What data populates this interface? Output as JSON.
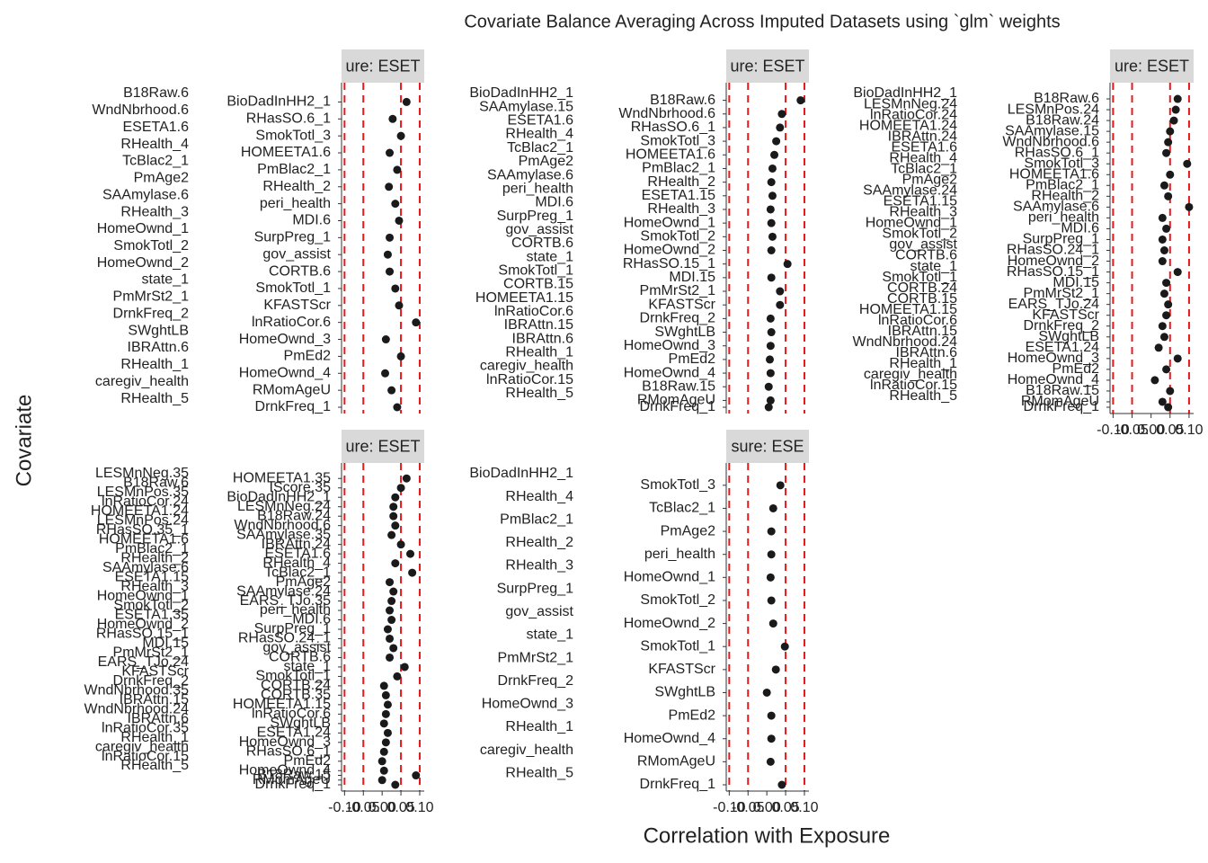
{
  "chart_data": {
    "type": "dot",
    "title": "Covariate Balance Averaging Across Imputed Datasets using `glm` weights",
    "x_label": "Correlation with Exposure",
    "y_label": "Covariate",
    "xlim": [
      -0.108,
      0.112
    ],
    "xticks": [
      {
        "value": -0.1,
        "label": "-0.10"
      },
      {
        "value": -0.05,
        "label": "-0.05"
      },
      {
        "value": 0,
        "label": "0.00"
      },
      {
        "value": 0.05,
        "label": "0.05"
      },
      {
        "value": 0.1,
        "label": "0.10"
      }
    ],
    "reference_lines": [
      -0.1,
      -0.05,
      0.05,
      0.1
    ],
    "reference_color": "#e41a1c",
    "point_color": "#1a1a1a",
    "panels": [
      {
        "strip": "ure: ESET",
        "x_axis": false,
        "outer_labels": [
          "B18Raw.6",
          "WndNbrhood.6",
          "ESETA1.6",
          "RHealth_4",
          "TcBlac2_1",
          "PmAge2",
          "SAAmylase.6",
          "RHealth_3",
          "HomeOwnd_1",
          "SmokTotl_2",
          "HomeOwnd_2",
          "state_1",
          "PmMrSt2_1",
          "DrnkFreq_2",
          "SWghtLB",
          "IBRAttn.6",
          "RHealth_1",
          "caregiv_health",
          "RHealth_5"
        ],
        "inner_labels": [
          "BioDadInHH2_1",
          "RHasSO.6_1",
          "SmokTotl_3",
          "HOMEETA1.6",
          "PmBlac2_1",
          "RHealth_2",
          "peri_health",
          "MDI.6",
          "SurpPreg_1",
          "gov_assist",
          "CORTB.6",
          "SmokTotl_1",
          "KFASTScr",
          "lnRatioCor.6",
          "HomeOwnd_3",
          "PmEd2",
          "HomeOwnd_4",
          "RMomAgeU",
          "DrnkFreq_1"
        ],
        "values": [
          0.065,
          0.028,
          0.05,
          0.02,
          0.04,
          0.018,
          0.035,
          0.045,
          0.02,
          0.015,
          0.02,
          0.035,
          0.045,
          0.09,
          0.01,
          0.05,
          0.008,
          0.025,
          0.04
        ]
      },
      {
        "strip": "ure: ESET",
        "x_axis": false,
        "outer_labels": [
          "BioDadInHH2_1",
          "SAAmylase.15",
          "ESETA1.6",
          "RHealth_4",
          "TcBlac2_1",
          "PmAge2",
          "SAAmylase.6",
          "peri_health",
          "MDI.6",
          "SurpPreg_1",
          "gov_assist",
          "CORTB.6",
          "state_1",
          "SmokTotl_1",
          "CORTB.15",
          "HOMEETA1.15",
          "lnRatioCor.6",
          "IBRAttn.15",
          "IBRAttn.6",
          "RHealth_1",
          "caregiv_health",
          "lnRatioCor.15",
          "RHealth_5"
        ],
        "inner_labels": [
          "B18Raw.6",
          "WndNbrhood.6",
          "RHasSO.6_1",
          "SmokTotl_3",
          "HOMEETA1.6",
          "PmBlac2_1",
          "RHealth_2",
          "ESETA1.15",
          "RHealth_3",
          "HomeOwnd_1",
          "SmokTotl_2",
          "HomeOwnd_2",
          "RHasSO.15_1",
          "MDI.15",
          "PmMrSt2_1",
          "KFASTScr",
          "DrnkFreq_2",
          "SWghtLB",
          "HomeOwnd_3",
          "PmEd2",
          "HomeOwnd_4",
          "B18Raw.15",
          "RMomAgeU",
          "DrnkFreq_1"
        ],
        "values": [
          0.09,
          0.04,
          0.035,
          0.025,
          0.02,
          0.015,
          0.012,
          0.015,
          0.01,
          0.012,
          0.015,
          0.012,
          0.055,
          0.012,
          0.035,
          0.035,
          0.01,
          0.012,
          0.01,
          0.008,
          0.01,
          0.005,
          0.01,
          0.005
        ]
      },
      {
        "strip": "ure: ESET",
        "x_axis": true,
        "outer_labels": [
          "BioDadInHH2_1",
          "LESMnNeg.24",
          "lnRatioCor.24",
          "HOMEETA1.24",
          "IBRAttn.24",
          "ESETA1.6",
          "RHealth_4",
          "TcBlac2_1",
          "PmAge2",
          "SAAmylase.24",
          "ESETA1.15",
          "RHealth_3",
          "HomeOwnd_1",
          "SmokTotl_2",
          "gov_assist",
          "CORTB.6",
          "state_1",
          "SmokTotl_1",
          "CORTB.24",
          "CORTB.15",
          "HOMEETA1.15",
          "lnRatioCor.6",
          "IBRAttn.15",
          "WndNbrhood.24",
          "IBRAttn.6",
          "RHealth_1",
          "caregiv_health",
          "lnRatioCor.15",
          "RHealth_5"
        ],
        "inner_labels": [
          "B18Raw.6",
          "LESMnPos.24",
          "B18Raw.24",
          "SAAmylase.15",
          "WndNbrhood.6",
          "RHasSO.6_1",
          "SmokTotl_3",
          "HOMEETA1.6",
          "PmBlac2_1",
          "RHealth_2",
          "SAAmylase.6",
          "peri_health",
          "MDI.6",
          "SurpPreg_1",
          "RHasSO.24_1",
          "HomeOwnd_2",
          "RHasSO.15_1",
          "MDI.15",
          "PmMrSt2_1",
          "EARS_TJo.24",
          "KFASTScr",
          "DrnkFreq_2",
          "SWghtLB",
          "ESETA1.24",
          "HomeOwnd_3",
          "PmEd2",
          "HomeOwnd_4",
          "B18Raw.15",
          "RMomAgeU",
          "DrnkFreq_1"
        ],
        "values": [
          0.07,
          0.065,
          0.06,
          0.05,
          0.045,
          0.04,
          0.095,
          0.05,
          0.035,
          0.045,
          0.1,
          0.03,
          0.04,
          0.03,
          0.035,
          0.03,
          0.07,
          0.04,
          0.035,
          0.045,
          0.04,
          0.03,
          0.035,
          0.02,
          0.07,
          0.04,
          0.01,
          0.05,
          0.03,
          0.045
        ]
      },
      {
        "strip": "ure: ESET",
        "x_axis": true,
        "outer_labels": [
          "LESMnNeg.35",
          "B18Raw.6",
          "LESMnPos.35",
          "lnRatioCor.24",
          "HOMEETA1.24",
          "LESMnPos.24",
          "RHasSO.35_1",
          "HOMEETA1.6",
          "PmBlac2_1",
          "RHealth_2",
          "SAAmylase.6",
          "ESETA1.15",
          "RHealth_3",
          "HomeOwnd_1",
          "SmokTotl_2",
          "ESETA1.35",
          "HomeOwnd_2",
          "RHasSO.15_1",
          "MDI.15",
          "PmMrSt2_1",
          "EARS_TJo.24",
          "KFASTScr",
          "DrnkFreq_2",
          "WndNbrhood.35",
          "IBRAttn.15",
          "WndNbrhood.24",
          "IBRAttn.6",
          "lnRatioCor.35",
          "RHealth_1",
          "caregiv_health",
          "lnRatioCor.15",
          "RHealth_5"
        ],
        "inner_labels": [
          "HOMEETA1.35",
          "IScore.35",
          "BioDadInHH2_1",
          "LESMnNeg.24",
          "B18Raw.24",
          "WndNbrhood.6",
          "SAAmylase.35",
          "IBRAttn.24",
          "ESETA1.6",
          "RHealth_4",
          "TcBlac2_1",
          "PmAge2",
          "SAAmylase.24",
          "EARS_TJo.35",
          "peri_health",
          "MDI.6",
          "SurpPreg_1",
          "RHasSO.24_1",
          "gov_assist",
          "CORTB.6",
          "state_1",
          "SmokTotl_1",
          "CORTB.24",
          "CORTB.35",
          "HOMEETA1.15",
          "lnRatioCor.6",
          "SWghtLB",
          "ESETA1.24",
          "HomeOwnd_3",
          "RHasSO.6_1",
          "PmEd2",
          "HomeOwnd_4",
          "B18Raw.15",
          "RMomAgeU",
          "DrnkFreq_1"
        ],
        "values": [
          0.065,
          0.05,
          0.035,
          0.03,
          0.03,
          0.035,
          0.025,
          0.05,
          0.075,
          0.035,
          0.08,
          0.02,
          0.03,
          0.025,
          0.02,
          0.025,
          0.015,
          0.02,
          0.03,
          0.02,
          0.06,
          0.04,
          0.005,
          0.01,
          0.015,
          0.01,
          0.005,
          0.015,
          0.01,
          0.005,
          0.0,
          0.005,
          0.09,
          0.0,
          0.035
        ]
      },
      {
        "strip": "sure: ESE",
        "x_axis": true,
        "outer_labels": [
          "BioDadInHH2_1",
          "RHealth_4",
          "PmBlac2_1",
          "RHealth_2",
          "RHealth_3",
          "SurpPreg_1",
          "gov_assist",
          "state_1",
          "PmMrSt2_1",
          "DrnkFreq_2",
          "HomeOwnd_3",
          "RHealth_1",
          "caregiv_health",
          "RHealth_5"
        ],
        "inner_labels": [
          "SmokTotl_3",
          "TcBlac2_1",
          "PmAge2",
          "peri_health",
          "HomeOwnd_1",
          "SmokTotl_2",
          "HomeOwnd_2",
          "SmokTotl_1",
          "KFASTScr",
          "SWghtLB",
          "PmEd2",
          "HomeOwnd_4",
          "RMomAgeU",
          "DrnkFreq_1"
        ],
        "values": [
          0.036,
          0.017,
          0.012,
          0.012,
          0.01,
          0.012,
          0.017,
          0.048,
          0.024,
          0.0,
          0.012,
          0.012,
          0.01,
          0.04
        ]
      }
    ]
  }
}
